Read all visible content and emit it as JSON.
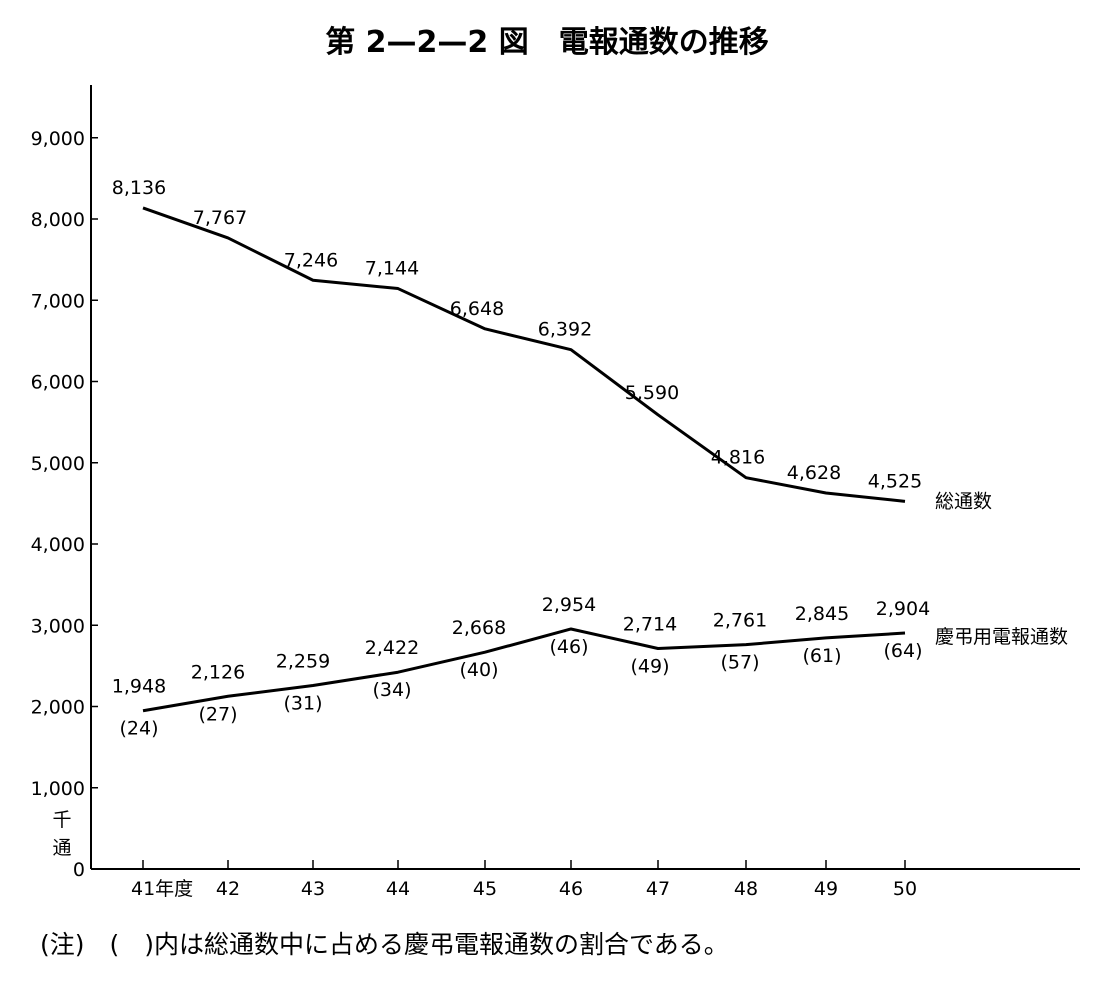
{
  "title": "第 2—2—2 図　電報通数の推移",
  "note": "(注)　(　)内は総通数中に占める慶弔電報通数の割合である。",
  "chart_data": {
    "type": "line",
    "title": "第 2—2—2 図　電報通数の推移",
    "xlabel": "",
    "ylabel": "千通",
    "ylim": [
      0,
      9000
    ],
    "yticks": [
      0,
      1000,
      2000,
      3000,
      4000,
      5000,
      6000,
      7000,
      8000,
      9000
    ],
    "ytick_labels": [
      "0",
      "1,000",
      "2,000",
      "3,000",
      "4,000",
      "5,000",
      "6,000",
      "7,000",
      "8,000",
      "9,000"
    ],
    "x": [
      "41年度",
      "42",
      "43",
      "44",
      "45",
      "46",
      "47",
      "48",
      "49",
      "50"
    ],
    "grid": false,
    "series": [
      {
        "name": "総通数",
        "values": [
          8136,
          7767,
          7246,
          7144,
          6648,
          6392,
          5590,
          4816,
          4628,
          4525
        ],
        "labels": [
          "8,136",
          "7,767",
          "7,246",
          "7,144",
          "6,648",
          "6,392",
          "5,590",
          "4,816",
          "4,628",
          "4,525"
        ]
      },
      {
        "name": "慶弔用電報通数",
        "values": [
          1948,
          2126,
          2259,
          2422,
          2668,
          2954,
          2714,
          2761,
          2845,
          2904
        ],
        "labels": [
          "1,948",
          "2,126",
          "2,259",
          "2,422",
          "2,668",
          "2,954",
          "2,714",
          "2,761",
          "2,845",
          "2,904"
        ],
        "share_labels": [
          "(24)",
          "(27)",
          "(31)",
          "(34)",
          "(40)",
          "(46)",
          "(49)",
          "(57)",
          "(61)",
          "(64)"
        ]
      }
    ]
  }
}
